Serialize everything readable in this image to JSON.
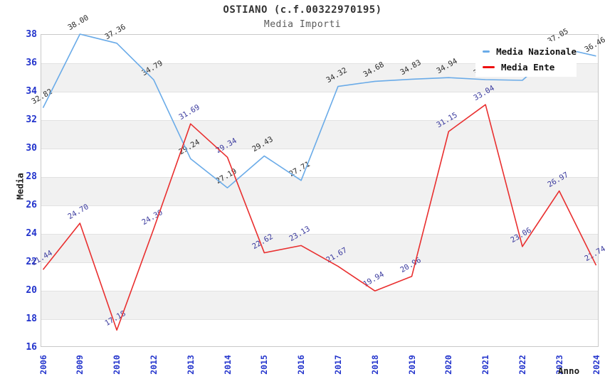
{
  "header": {
    "title": "OSTIANO (c.f.00322970195)",
    "subtitle": "Media Importi"
  },
  "axes": {
    "y_label": "Media",
    "x_label": "Anno"
  },
  "legend": {
    "items": [
      {
        "label": "Media Nazionale",
        "color": "#6aabe8"
      },
      {
        "label": "Media Ente",
        "color": "#ee1111"
      }
    ]
  },
  "colors": {
    "tick_label": "#2233cc",
    "band": "#f1f1f1",
    "gridline": "#e2e2e2",
    "plot_border": "#c9c9c9",
    "nazionale_line": "#6aabe8",
    "ente_line": "#e92f2f",
    "nazionale_point_label": "#2b2b2b",
    "ente_point_label": "#3a3a9e"
  },
  "chart_data": {
    "type": "line",
    "title": "OSTIANO (c.f.00322970195)",
    "subtitle": "Media Importi",
    "xlabel": "Anno",
    "ylabel": "Media",
    "ylim": [
      16,
      38
    ],
    "yticks": [
      16,
      18,
      20,
      22,
      24,
      26,
      28,
      30,
      32,
      34,
      36,
      38
    ],
    "grid": "horizontal-bands-alternating",
    "legend_position": "top-right-overlay",
    "categories": [
      "2006",
      "2009",
      "2010",
      "2012",
      "2013",
      "2014",
      "2015",
      "2016",
      "2017",
      "2018",
      "2019",
      "2020",
      "2021",
      "2022",
      "2023",
      "2024"
    ],
    "series": [
      {
        "name": "Media Nazionale",
        "color": "#6aabe8",
        "label_color": "#2b2b2b",
        "values": [
          32.82,
          38.0,
          37.36,
          34.79,
          29.24,
          27.19,
          29.43,
          27.71,
          34.32,
          34.68,
          34.83,
          34.94,
          34.8,
          34.75,
          37.05,
          36.46
        ],
        "note": "labels for 2021 and 2022 are hidden behind the legend box; values estimated from line position"
      },
      {
        "name": "Media Ente",
        "color": "#e92f2f",
        "label_color": "#3a3a9e",
        "values": [
          21.44,
          24.7,
          17.18,
          24.3,
          31.69,
          29.34,
          22.62,
          23.13,
          21.67,
          19.94,
          20.96,
          31.15,
          33.04,
          23.06,
          26.97,
          21.74
        ]
      }
    ]
  }
}
